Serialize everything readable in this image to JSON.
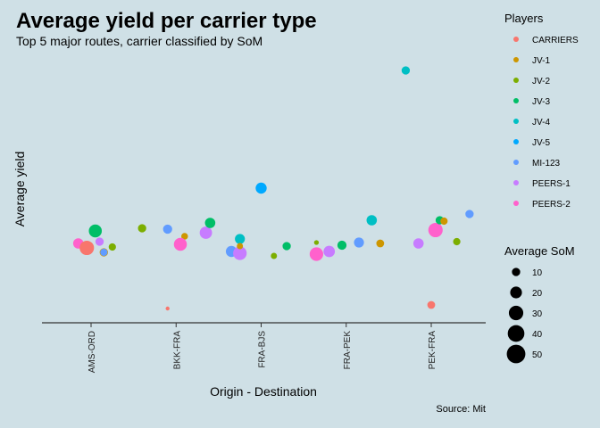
{
  "chart_data": {
    "type": "scatter",
    "title": "Average yield per carrier type",
    "subtitle": "Top 5 major routes, carrier classified by SoM",
    "xlabel": "Origin - Destination",
    "ylabel": "Average yield",
    "caption": "Source: Mit",
    "categories": [
      "AMS-ORD",
      "BKK-FRA",
      "FRA-BJS",
      "FRA-PEK",
      "PEK-FRA"
    ],
    "grid": false,
    "color_legend": {
      "title": "Players",
      "placement": "right",
      "entries": [
        {
          "name": "CARRIERS",
          "color": "#F8766D"
        },
        {
          "name": "JV-1",
          "color": "#CD9600"
        },
        {
          "name": "JV-2",
          "color": "#7CAE00"
        },
        {
          "name": "JV-3",
          "color": "#00BE67"
        },
        {
          "name": "JV-4",
          "color": "#00BFC4"
        },
        {
          "name": "JV-5",
          "color": "#00A9FF"
        },
        {
          "name": "MI-123",
          "color": "#619CFF"
        },
        {
          "name": "PEERS-1",
          "color": "#C77CFF"
        },
        {
          "name": "PEERS-2",
          "color": "#FF61CC"
        }
      ]
    },
    "size_legend": {
      "title": "Average SoM",
      "values": [
        10,
        20,
        30,
        40,
        50
      ]
    },
    "points": [
      {
        "category": "AMS-ORD",
        "player": "PEERS-2",
        "yield": 0.77,
        "som": 14,
        "offset": -0.15
      },
      {
        "category": "AMS-ORD",
        "player": "CARRIERS",
        "yield": 0.72,
        "som": 27,
        "offset": -0.05
      },
      {
        "category": "AMS-ORD",
        "player": "JV-3",
        "yield": 0.91,
        "som": 22,
        "offset": 0.05
      },
      {
        "category": "AMS-ORD",
        "player": "PEERS-1",
        "yield": 0.79,
        "som": 9,
        "offset": 0.1
      },
      {
        "category": "AMS-ORD",
        "player": "JV-1",
        "yield": 0.67,
        "som": 9,
        "offset": 0.15
      },
      {
        "category": "AMS-ORD",
        "player": "MI-123",
        "yield": 0.67,
        "som": 7,
        "offset": 0.15
      },
      {
        "category": "AMS-ORD",
        "player": "JV-2",
        "yield": 0.73,
        "som": 7,
        "offset": 0.25
      },
      {
        "category": "BKK-FRA",
        "player": "JV-2",
        "yield": 0.94,
        "som": 9,
        "offset": -0.4
      },
      {
        "category": "BKK-FRA",
        "player": "MI-123",
        "yield": 0.93,
        "som": 11,
        "offset": -0.1
      },
      {
        "category": "BKK-FRA",
        "player": "CARRIERS",
        "yield": 0.04,
        "som": 2,
        "offset": -0.1
      },
      {
        "category": "BKK-FRA",
        "player": "JV-1",
        "yield": 0.85,
        "som": 6,
        "offset": 0.1
      },
      {
        "category": "BKK-FRA",
        "player": "PEERS-2",
        "yield": 0.76,
        "som": 22,
        "offset": 0.05
      },
      {
        "category": "BKK-FRA",
        "player": "PEERS-1",
        "yield": 0.89,
        "som": 20,
        "offset": 0.35
      },
      {
        "category": "BKK-FRA",
        "player": "JV-3",
        "yield": 1.0,
        "som": 14,
        "offset": 0.4
      },
      {
        "category": "FRA-BJS",
        "player": "MI-123",
        "yield": 0.68,
        "som": 16,
        "offset": -0.35
      },
      {
        "category": "FRA-BJS",
        "player": "PEERS-1",
        "yield": 0.66,
        "som": 24,
        "offset": -0.25
      },
      {
        "category": "FRA-BJS",
        "player": "JV-4",
        "yield": 0.82,
        "som": 13,
        "offset": -0.25
      },
      {
        "category": "FRA-BJS",
        "player": "JV-1",
        "yield": 0.74,
        "som": 5,
        "offset": -0.25
      },
      {
        "category": "FRA-BJS",
        "player": "JV-5",
        "yield": 1.39,
        "som": 16,
        "offset": 0.0
      },
      {
        "category": "FRA-BJS",
        "player": "JV-2",
        "yield": 0.63,
        "som": 5,
        "offset": 0.15
      },
      {
        "category": "FRA-BJS",
        "player": "JV-3",
        "yield": 0.74,
        "som": 9,
        "offset": 0.3
      },
      {
        "category": "FRA-PEK",
        "player": "PEERS-2",
        "yield": 0.65,
        "som": 24,
        "offset": -0.35
      },
      {
        "category": "FRA-PEK",
        "player": "JV-2",
        "yield": 0.78,
        "som": 3,
        "offset": -0.35
      },
      {
        "category": "FRA-PEK",
        "player": "PEERS-1",
        "yield": 0.68,
        "som": 17,
        "offset": -0.2
      },
      {
        "category": "FRA-PEK",
        "player": "JV-3",
        "yield": 0.75,
        "som": 11,
        "offset": -0.05
      },
      {
        "category": "FRA-PEK",
        "player": "MI-123",
        "yield": 0.78,
        "som": 13,
        "offset": 0.15
      },
      {
        "category": "FRA-PEK",
        "player": "JV-1",
        "yield": 0.77,
        "som": 8,
        "offset": 0.4
      },
      {
        "category": "FRA-PEK",
        "player": "JV-4",
        "yield": 1.03,
        "som": 14,
        "offset": 0.3
      },
      {
        "category": "PEK-FRA",
        "player": "JV-4",
        "yield": 2.71,
        "som": 9,
        "offset": -0.3
      },
      {
        "category": "PEK-FRA",
        "player": "PEERS-1",
        "yield": 0.77,
        "som": 14,
        "offset": -0.15
      },
      {
        "category": "PEK-FRA",
        "player": "PEERS-2",
        "yield": 0.92,
        "som": 27,
        "offset": 0.05
      },
      {
        "category": "PEK-FRA",
        "player": "CARRIERS",
        "yield": 0.08,
        "som": 8,
        "offset": 0.0
      },
      {
        "category": "PEK-FRA",
        "player": "JV-3",
        "yield": 1.03,
        "som": 9,
        "offset": 0.1
      },
      {
        "category": "PEK-FRA",
        "player": "JV-1",
        "yield": 1.02,
        "som": 7,
        "offset": 0.15
      },
      {
        "category": "PEK-FRA",
        "player": "JV-2",
        "yield": 0.79,
        "som": 7,
        "offset": 0.3
      },
      {
        "category": "PEK-FRA",
        "player": "MI-123",
        "yield": 1.1,
        "som": 9,
        "offset": 0.45
      }
    ]
  }
}
